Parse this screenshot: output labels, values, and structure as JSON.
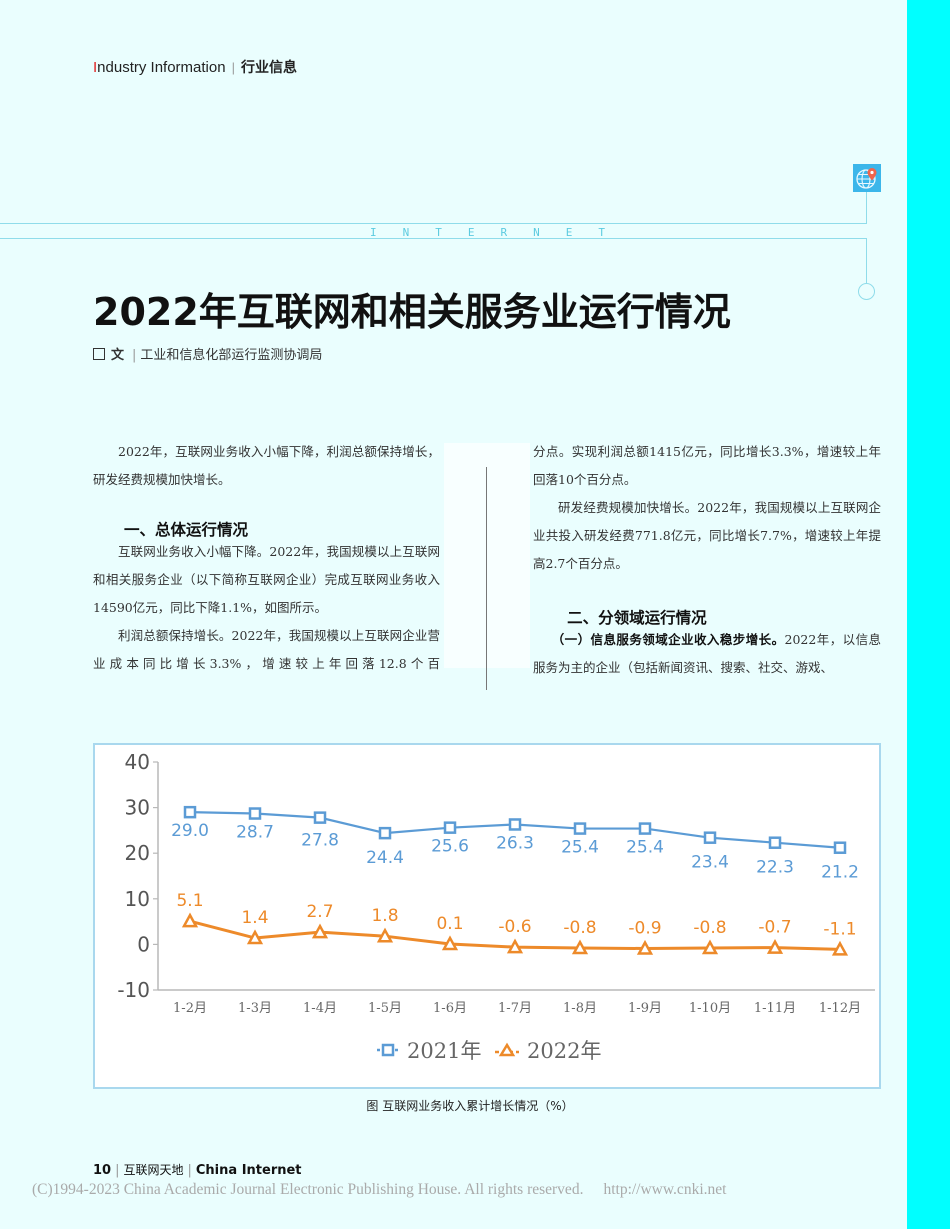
{
  "header": {
    "section_en_first": "I",
    "section_en_rest": "ndustry Information",
    "separator": "|",
    "section_zh": "行业信息"
  },
  "decoration": {
    "banner_word": "INTERNET",
    "icon": "globe-location-icon"
  },
  "article": {
    "title": "2022年互联网和相关服务业运行情况",
    "byline": {
      "prefix": "文",
      "separator": "|",
      "author": "工业和信息化部运行监测协调局"
    },
    "left_column": {
      "intro": "2022年，互联网业务收入小幅下降，利润总额保持增长，研发经费规模加快增长。",
      "heading1": "一、总体运行情况",
      "para1": "互联网业务收入小幅下降。2022年，我国规模以上互联网和相关服务企业（以下简称互联网企业）完成互联网业务收入14590亿元，同比下降1.1%，如图所示。",
      "para2": "利润总额保持增长。2022年，我国规模以上互联网企业营业成本同比增长3.3%，增速较上年回落12.8个百"
    },
    "right_column": {
      "para2_cont": "分点。实现利润总额1415亿元，同比增长3.3%，增速较上年回落10个百分点。",
      "para3": "研发经费规模加快增长。2022年，我国规模以上互联网企业共投入研发经费771.8亿元，同比增长7.7%，增速较上年提高2.7个百分点。",
      "heading2": "二、分领域运行情况",
      "para4_bold": "（一）信息服务领域企业收入稳步增长。",
      "para4_rest": "2022年，以信息服务为主的企业（包括新闻资讯、搜索、社交、游戏、"
    }
  },
  "chart_data": {
    "type": "line",
    "title": "图 互联网业务收入累计增长情况（%）",
    "xlabel": "",
    "ylabel": "",
    "categories": [
      "1-2月",
      "1-3月",
      "1-4月",
      "1-5月",
      "1-6月",
      "1-7月",
      "1-8月",
      "1-9月",
      "1-10月",
      "1-11月",
      "1-12月"
    ],
    "series": [
      {
        "name": "2021年",
        "color": "#5b9bd5",
        "marker": "square",
        "values": [
          29.0,
          28.7,
          27.8,
          24.4,
          25.6,
          26.3,
          25.4,
          25.4,
          23.4,
          22.3,
          21.2
        ]
      },
      {
        "name": "2022年",
        "color": "#ed8a2a",
        "marker": "triangle",
        "values": [
          5.1,
          1.4,
          2.7,
          1.8,
          0.1,
          -0.6,
          -0.8,
          -0.9,
          -0.8,
          -0.7,
          -1.1
        ]
      }
    ],
    "yticks": [
      40,
      30,
      20,
      10,
      0,
      -10
    ],
    "ylim": [
      -10,
      40
    ],
    "grid": false,
    "legend_position": "bottom"
  },
  "caption": "图 互联网业务收入累计增长情况（%）",
  "footer": {
    "page": "10",
    "sep": "|",
    "journal_zh": "互联网天地",
    "journal_en": "China Internet"
  },
  "copyright": {
    "text": "(C)1994-2023 China Academic Journal Electronic Publishing House. All rights reserved.",
    "url": "http://www.cnki.net"
  }
}
